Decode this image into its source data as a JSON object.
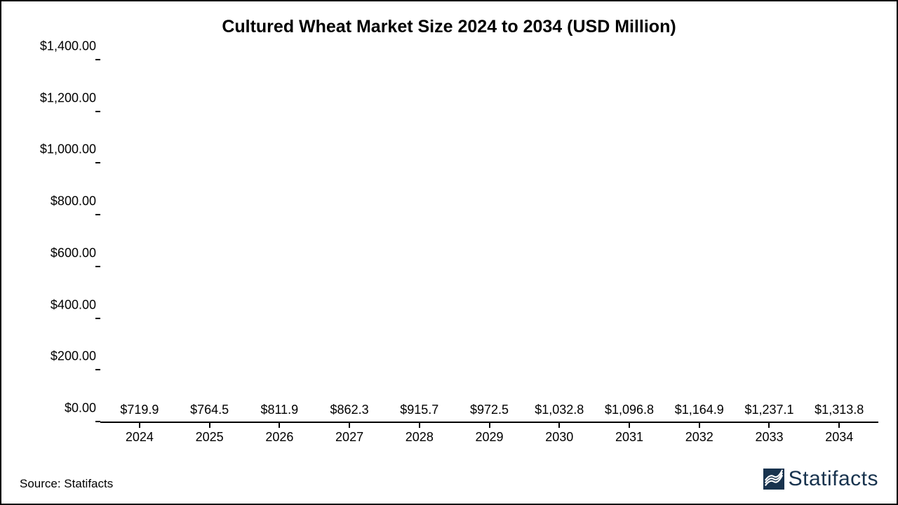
{
  "chart": {
    "type": "bar",
    "title": "Cultured Wheat Market Size 2024 to 2034 (USD Million)",
    "title_fontsize": 25,
    "title_fontweight": 700,
    "background_color": "#ffffff",
    "border_color": "#000000",
    "axis_color": "#000000",
    "tick_fontsize": 18,
    "datalabel_fontsize": 18,
    "bar_color": "#215e55",
    "bar_width_pct": 72,
    "categories": [
      "2024",
      "2025",
      "2026",
      "2027",
      "2028",
      "2029",
      "2030",
      "2031",
      "2032",
      "2033",
      "2034"
    ],
    "values": [
      719.9,
      764.5,
      811.9,
      862.3,
      915.7,
      972.5,
      1032.8,
      1096.8,
      1164.9,
      1237.1,
      1313.8
    ],
    "data_labels": [
      "$719.9",
      "$764.5",
      "$811.9",
      "$862.3",
      "$915.7",
      "$972.5",
      "$1,032.8",
      "$1,096.8",
      "$1,164.9",
      "$1,237.1",
      "$1,313.8"
    ],
    "ylim": [
      0,
      1400
    ],
    "ytick_step": 200,
    "ytick_labels": [
      "$0.00",
      "$200.00",
      "$400.00",
      "$600.00",
      "$800.00",
      "$1,000.00",
      "$1,200.00",
      "$1,400.00"
    ]
  },
  "footer": {
    "source": "Source: Statifacts",
    "brand": "Statifacts",
    "brand_color": "#18334e"
  }
}
